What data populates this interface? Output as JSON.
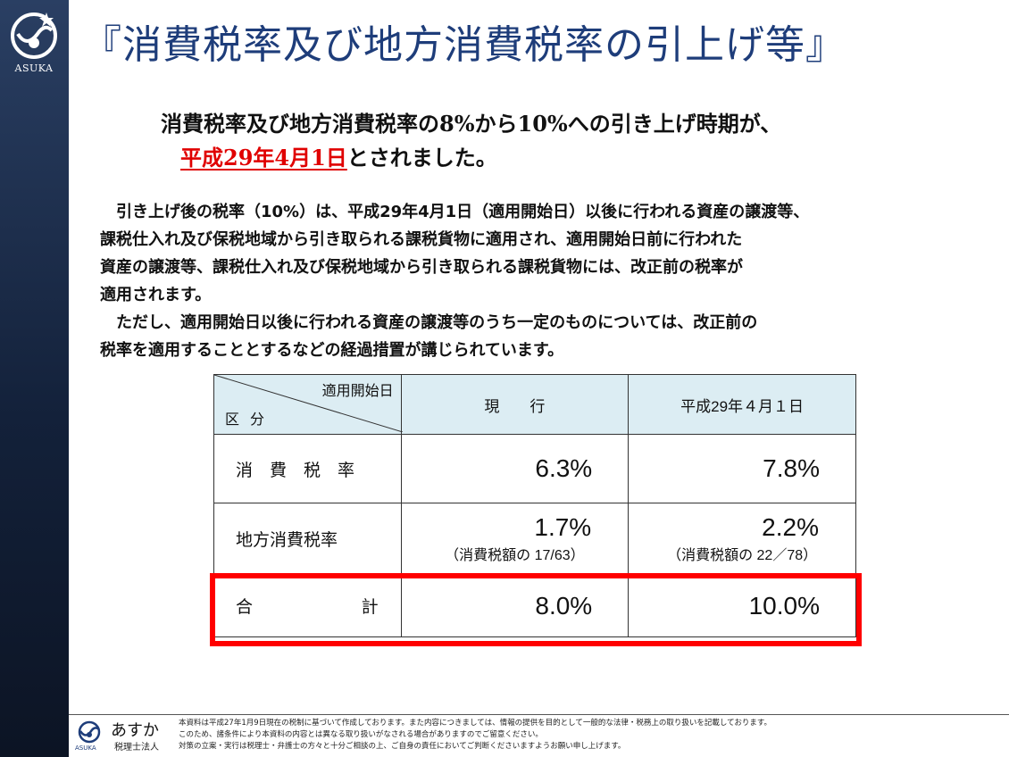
{
  "sidebar": {
    "logo_text": "ASUKA"
  },
  "title": "『消費税率及び地方消費税率の引上げ等』",
  "intro": {
    "line1": "消費税率及び地方消費税率の8%から10%への引き上げ時期が、",
    "highlight": "平成29年4月1日",
    "line2_suffix": "とされました。"
  },
  "body": {
    "p1": "　引き上げ後の税率（10%）は、平成29年4月1日（適用開始日）以後に行われる資産の譲渡等、",
    "p2": "課税仕入れ及び保税地域から引き取られる課税貨物に適用され、適用開始日前に行われた",
    "p3": "資産の譲渡等、課税仕入れ及び保税地域から引き取られる課税貨物には、改正前の税率が",
    "p4": "適用されます。",
    "p5": "　ただし、適用開始日以後に行われる資産の譲渡等のうち一定のものについては、改正前の",
    "p6": "税率を適用することとするなどの経過措置が講じられています。"
  },
  "table": {
    "corner_top": "適用開始日",
    "corner_bottom": "区分",
    "col_current": "現　　行",
    "col_new": "平成29年４月１日",
    "rows": [
      {
        "label": "消　費　税　率",
        "current": "6.3%",
        "new": "7.8%"
      },
      {
        "label": "地方消費税率",
        "current": "1.7%",
        "current_sub": "（消費税額の 17/63）",
        "new": "2.2%",
        "new_sub": "（消費税額の 22／78）"
      },
      {
        "label_a": "合",
        "label_b": "計",
        "current": "8.0%",
        "new": "10.0%"
      }
    ]
  },
  "footer": {
    "logo_name": "あすか",
    "logo_sub": "税理士法人",
    "logo_asuka": "ASUKA",
    "line1": "本資料は平成27年1月9日現在の税制に基づいて作成しております。また内容につきましては、情報の提供を目的として一般的な法律・税務上の取り扱いを記載しております。",
    "line2": "このため、諸条件により本資料の内容とは異なる取り扱いがなされる場合がありますのでご留意ください。",
    "line3": "対策の立案・実行は税理士・弁護士の方々と十分ご相談の上、ご自身の責任においてご判断くださいますようお願い申し上げます。"
  },
  "colors": {
    "title": "#1e3d7a",
    "highlight": "#e00000",
    "header_bg": "#dcedf3",
    "red_box": "#ff0000"
  }
}
